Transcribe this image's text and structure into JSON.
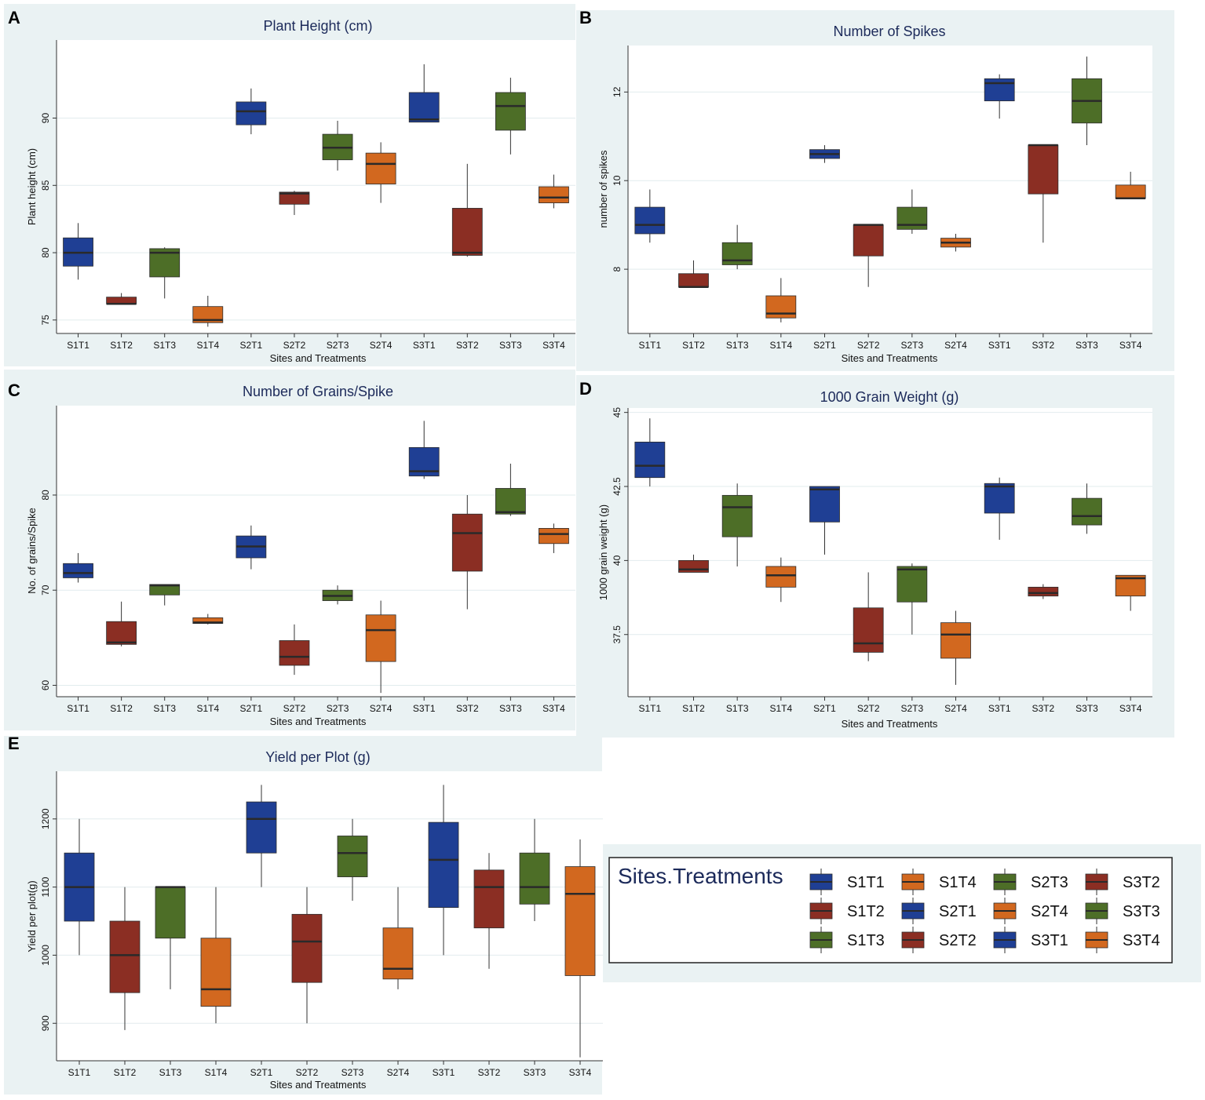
{
  "colors": {
    "T1": "#1f3f94",
    "T2": "#8b2e23",
    "T3": "#4d6e27",
    "T4": "#d2681f",
    "panel_bg": "#eaf2f3",
    "median": "#2a2a2a"
  },
  "categories": [
    "S1T1",
    "S1T2",
    "S1T3",
    "S1T4",
    "S2T1",
    "S2T2",
    "S2T3",
    "S2T4",
    "S3T1",
    "S3T2",
    "S3T3",
    "S3T4"
  ],
  "chart_data": [
    {
      "panel": "A",
      "type": "box",
      "title": "Plant Height (cm)",
      "xlabel": "Sites and Treatments",
      "ylabel": "Plant height (cm)",
      "ylim": [
        74,
        95.8
      ],
      "yticks": [
        75,
        80,
        85,
        90
      ],
      "boxes": [
        {
          "cat": "S1T1",
          "min": 78,
          "q1": 79,
          "median": 80,
          "q3": 81.1,
          "max": 82.2
        },
        {
          "cat": "S1T2",
          "min": 76.2,
          "q1": 76.2,
          "median": 76.2,
          "q3": 76.7,
          "max": 77
        },
        {
          "cat": "S1T3",
          "min": 76.6,
          "q1": 78.2,
          "median": 80,
          "q3": 80.3,
          "max": 80.4
        },
        {
          "cat": "S1T4",
          "min": 74.5,
          "q1": 74.8,
          "median": 75,
          "q3": 76,
          "max": 76.8
        },
        {
          "cat": "S2T1",
          "min": 88.8,
          "q1": 89.5,
          "median": 90.5,
          "q3": 91.2,
          "max": 92.2
        },
        {
          "cat": "S2T2",
          "min": 82.8,
          "q1": 83.6,
          "median": 84.4,
          "q3": 84.5,
          "max": 84.6
        },
        {
          "cat": "S2T3",
          "min": 86.1,
          "q1": 86.9,
          "median": 87.8,
          "q3": 88.8,
          "max": 89.8
        },
        {
          "cat": "S2T4",
          "min": 83.7,
          "q1": 85.1,
          "median": 86.6,
          "q3": 87.4,
          "max": 88.2
        },
        {
          "cat": "S3T1",
          "min": 89.7,
          "q1": 89.7,
          "median": 89.9,
          "q3": 91.9,
          "max": 94
        },
        {
          "cat": "S3T2",
          "min": 79.7,
          "q1": 79.8,
          "median": 80,
          "q3": 83.3,
          "max": 86.6
        },
        {
          "cat": "S3T3",
          "min": 87.3,
          "q1": 89.1,
          "median": 90.9,
          "q3": 91.9,
          "max": 93
        },
        {
          "cat": "S3T4",
          "min": 83.3,
          "q1": 83.7,
          "median": 84.1,
          "q3": 84.9,
          "max": 85.8
        }
      ]
    },
    {
      "panel": "B",
      "type": "box",
      "title": "Number of Spikes",
      "xlabel": "Sites and Treatments",
      "ylabel": "number of spikes",
      "ylim": [
        6.55,
        13.05
      ],
      "yticks": [
        8,
        10,
        12
      ],
      "boxes": [
        {
          "cat": "S1T1",
          "min": 8.6,
          "q1": 8.8,
          "median": 9,
          "q3": 9.4,
          "max": 9.8
        },
        {
          "cat": "S1T2",
          "min": 7.6,
          "q1": 7.6,
          "median": 7.6,
          "q3": 7.9,
          "max": 8.2
        },
        {
          "cat": "S1T3",
          "min": 8,
          "q1": 8.1,
          "median": 8.2,
          "q3": 8.6,
          "max": 9
        },
        {
          "cat": "S1T4",
          "min": 6.8,
          "q1": 6.9,
          "median": 7,
          "q3": 7.4,
          "max": 7.8
        },
        {
          "cat": "S2T1",
          "min": 10.4,
          "q1": 10.5,
          "median": 10.6,
          "q3": 10.7,
          "max": 10.8
        },
        {
          "cat": "S2T2",
          "min": 7.6,
          "q1": 8.3,
          "median": 9,
          "q3": 9,
          "max": 9
        },
        {
          "cat": "S2T3",
          "min": 8.8,
          "q1": 8.9,
          "median": 9,
          "q3": 9.4,
          "max": 9.8
        },
        {
          "cat": "S2T4",
          "min": 8.4,
          "q1": 8.5,
          "median": 8.6,
          "q3": 8.7,
          "max": 8.8
        },
        {
          "cat": "S3T1",
          "min": 11.4,
          "q1": 11.8,
          "median": 12.2,
          "q3": 12.3,
          "max": 12.4
        },
        {
          "cat": "S3T2",
          "min": 8.6,
          "q1": 9.7,
          "median": 10.8,
          "q3": 10.8,
          "max": 10.8
        },
        {
          "cat": "S3T3",
          "min": 10.8,
          "q1": 11.3,
          "median": 11.8,
          "q3": 12.3,
          "max": 12.8
        },
        {
          "cat": "S3T4",
          "min": 9.6,
          "q1": 9.6,
          "median": 9.6,
          "q3": 9.9,
          "max": 10.2
        }
      ]
    },
    {
      "panel": "C",
      "type": "box",
      "title": "Number of Grains/Spike",
      "xlabel": "Sites and Treatments",
      "ylabel": "No. of grains/Spike",
      "ylim": [
        58.8,
        89.4
      ],
      "yticks": [
        60,
        70,
        80
      ],
      "boxes": [
        {
          "cat": "S1T1",
          "min": 70.8,
          "q1": 71.3,
          "median": 71.8,
          "q3": 72.8,
          "max": 73.9
        },
        {
          "cat": "S1T2",
          "min": 64.1,
          "q1": 64.3,
          "median": 64.5,
          "q3": 66.7,
          "max": 68.8
        },
        {
          "cat": "S1T3",
          "min": 68.4,
          "q1": 69.5,
          "median": 70.5,
          "q3": 70.6,
          "max": 70.6
        },
        {
          "cat": "S1T4",
          "min": 66.4,
          "q1": 66.5,
          "median": 66.6,
          "q3": 67.1,
          "max": 67.5
        },
        {
          "cat": "S2T1",
          "min": 72.2,
          "q1": 73.4,
          "median": 74.6,
          "q3": 75.7,
          "max": 76.8
        },
        {
          "cat": "S2T2",
          "min": 61.1,
          "q1": 62.1,
          "median": 63,
          "q3": 64.7,
          "max": 66.4
        },
        {
          "cat": "S2T3",
          "min": 68.5,
          "q1": 68.9,
          "median": 69.4,
          "q3": 70,
          "max": 70.5
        },
        {
          "cat": "S2T4",
          "min": 59.2,
          "q1": 62.5,
          "median": 65.8,
          "q3": 67.4,
          "max": 68.9
        },
        {
          "cat": "S3T1",
          "min": 81.7,
          "q1": 82,
          "median": 82.5,
          "q3": 85,
          "max": 87.8
        },
        {
          "cat": "S3T2",
          "min": 68,
          "q1": 72,
          "median": 76,
          "q3": 78,
          "max": 80
        },
        {
          "cat": "S3T3",
          "min": 77.8,
          "q1": 78,
          "median": 78.2,
          "q3": 80.7,
          "max": 83.3
        },
        {
          "cat": "S3T4",
          "min": 73.9,
          "q1": 74.9,
          "median": 75.9,
          "q3": 76.5,
          "max": 77
        }
      ]
    },
    {
      "panel": "D",
      "type": "box",
      "title": "1000 Grain Weight (g)",
      "xlabel": "Sites and Treatments",
      "ylabel": "1000 grain weight (g)",
      "ylim": [
        35.4,
        45.15
      ],
      "yticks": [
        37.5,
        40.0,
        42.5,
        45.0
      ],
      "boxes": [
        {
          "cat": "S1T1",
          "min": 42.5,
          "q1": 42.8,
          "median": 43.2,
          "q3": 44,
          "max": 44.8
        },
        {
          "cat": "S1T2",
          "min": 39.6,
          "q1": 39.6,
          "median": 39.7,
          "q3": 40,
          "max": 40.2
        },
        {
          "cat": "S1T3",
          "min": 39.8,
          "q1": 40.8,
          "median": 41.8,
          "q3": 42.2,
          "max": 42.6
        },
        {
          "cat": "S1T4",
          "min": 38.6,
          "q1": 39.1,
          "median": 39.5,
          "q3": 39.8,
          "max": 40.1
        },
        {
          "cat": "S2T1",
          "min": 40.2,
          "q1": 41.3,
          "median": 42.4,
          "q3": 42.5,
          "max": 42.5
        },
        {
          "cat": "S2T2",
          "min": 36.6,
          "q1": 36.9,
          "median": 37.2,
          "q3": 38.4,
          "max": 39.6
        },
        {
          "cat": "S2T3",
          "min": 37.5,
          "q1": 38.6,
          "median": 39.7,
          "q3": 39.8,
          "max": 39.9
        },
        {
          "cat": "S2T4",
          "min": 35.8,
          "q1": 36.7,
          "median": 37.5,
          "q3": 37.9,
          "max": 38.3
        },
        {
          "cat": "S3T1",
          "min": 40.7,
          "q1": 41.6,
          "median": 42.5,
          "q3": 42.6,
          "max": 42.8
        },
        {
          "cat": "S3T2",
          "min": 38.7,
          "q1": 38.8,
          "median": 38.9,
          "q3": 39.1,
          "max": 39.2
        },
        {
          "cat": "S3T3",
          "min": 40.9,
          "q1": 41.2,
          "median": 41.5,
          "q3": 42.1,
          "max": 42.6
        },
        {
          "cat": "S3T4",
          "min": 38.3,
          "q1": 38.8,
          "median": 39.4,
          "q3": 39.5,
          "max": 39.5
        }
      ]
    },
    {
      "panel": "E",
      "type": "box",
      "title": "Yield per Plot (g)",
      "xlabel": "Sites and Treatments",
      "ylabel": "Yield per plot(g)",
      "ylim": [
        845,
        1270
      ],
      "yticks": [
        900,
        1000,
        1100,
        1200
      ],
      "boxes": [
        {
          "cat": "S1T1",
          "min": 1000,
          "q1": 1050,
          "median": 1100,
          "q3": 1150,
          "max": 1200
        },
        {
          "cat": "S1T2",
          "min": 890,
          "q1": 945,
          "median": 1000,
          "q3": 1050,
          "max": 1100
        },
        {
          "cat": "S1T3",
          "min": 950,
          "q1": 1025,
          "median": 1100,
          "q3": 1100,
          "max": 1100
        },
        {
          "cat": "S1T4",
          "min": 900,
          "q1": 925,
          "median": 950,
          "q3": 1025,
          "max": 1100
        },
        {
          "cat": "S2T1",
          "min": 1100,
          "q1": 1150,
          "median": 1200,
          "q3": 1225,
          "max": 1250
        },
        {
          "cat": "S2T2",
          "min": 900,
          "q1": 960,
          "median": 1020,
          "q3": 1060,
          "max": 1100
        },
        {
          "cat": "S2T3",
          "min": 1080,
          "q1": 1115,
          "median": 1150,
          "q3": 1175,
          "max": 1200
        },
        {
          "cat": "S2T4",
          "min": 950,
          "q1": 965,
          "median": 980,
          "q3": 1040,
          "max": 1100
        },
        {
          "cat": "S3T1",
          "min": 1000,
          "q1": 1070,
          "median": 1140,
          "q3": 1195,
          "max": 1250
        },
        {
          "cat": "S3T2",
          "min": 980,
          "q1": 1040,
          "median": 1100,
          "q3": 1125,
          "max": 1150
        },
        {
          "cat": "S3T3",
          "min": 1050,
          "q1": 1075,
          "median": 1100,
          "q3": 1150,
          "max": 1200
        },
        {
          "cat": "S3T4",
          "min": 850,
          "q1": 970,
          "median": 1090,
          "q3": 1130,
          "max": 1170
        }
      ]
    }
  ],
  "legend": {
    "title": "Sites.Treatments",
    "items": [
      "S1T1",
      "S1T2",
      "S1T3",
      "S1T4",
      "S2T1",
      "S2T2",
      "S2T3",
      "S2T4",
      "S3T1",
      "S3T2",
      "S3T3",
      "S3T4"
    ]
  }
}
